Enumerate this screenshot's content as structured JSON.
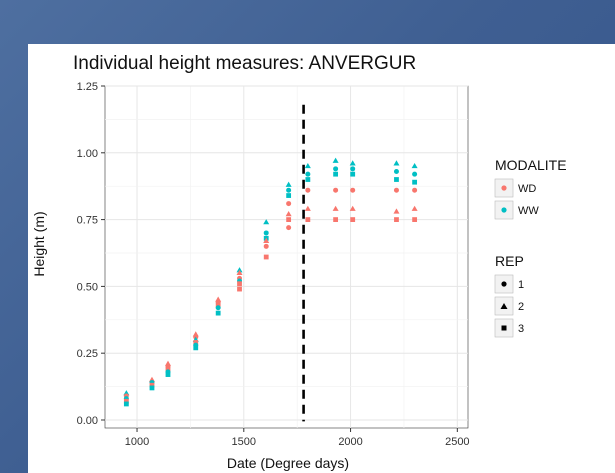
{
  "chart_data": {
    "type": "scatter",
    "title": "Individual height measures: ANVERGUR",
    "xlabel": "Date (Degree days)",
    "ylabel": "Height (m)",
    "xlim": [
      850,
      2550
    ],
    "ylim": [
      -0.03,
      1.25
    ],
    "x_ticks": [
      1000,
      1500,
      2000,
      2500
    ],
    "y_ticks": [
      0.0,
      0.25,
      0.5,
      0.75,
      1.0,
      1.25
    ],
    "x_tick_labels": [
      "1000",
      "1500",
      "2000",
      "2500"
    ],
    "y_tick_labels": [
      "0.00",
      "0.25",
      "0.50",
      "0.75",
      "1.00",
      "1.25"
    ],
    "grid": true,
    "vline": {
      "x": 1780,
      "style": "dashed",
      "color": "#000000"
    },
    "colors": {
      "WD": "#f8766d",
      "WW": "#00bfc4"
    },
    "legend_position": "right",
    "legends": [
      {
        "title": "MODALITE",
        "kind": "color",
        "items": [
          {
            "label": "WD",
            "key": "WD"
          },
          {
            "label": "WW",
            "key": "WW"
          }
        ]
      },
      {
        "title": "REP",
        "kind": "shape",
        "items": [
          {
            "label": "1",
            "shape": "circle"
          },
          {
            "label": "2",
            "shape": "triangle"
          },
          {
            "label": "3",
            "shape": "square"
          }
        ]
      }
    ],
    "points": [
      {
        "x": 950,
        "y": 0.1,
        "group": "WW",
        "rep": "2"
      },
      {
        "x": 950,
        "y": 0.09,
        "group": "WD",
        "rep": "1"
      },
      {
        "x": 950,
        "y": 0.08,
        "group": "WW",
        "rep": "1"
      },
      {
        "x": 950,
        "y": 0.07,
        "group": "WD",
        "rep": "3"
      },
      {
        "x": 950,
        "y": 0.06,
        "group": "WW",
        "rep": "3"
      },
      {
        "x": 1070,
        "y": 0.15,
        "group": "WD",
        "rep": "2"
      },
      {
        "x": 1070,
        "y": 0.14,
        "group": "WW",
        "rep": "1"
      },
      {
        "x": 1070,
        "y": 0.13,
        "group": "WD",
        "rep": "3"
      },
      {
        "x": 1070,
        "y": 0.12,
        "group": "WW",
        "rep": "3"
      },
      {
        "x": 1145,
        "y": 0.21,
        "group": "WD",
        "rep": "2"
      },
      {
        "x": 1145,
        "y": 0.2,
        "group": "WD",
        "rep": "1"
      },
      {
        "x": 1145,
        "y": 0.19,
        "group": "WD",
        "rep": "3"
      },
      {
        "x": 1145,
        "y": 0.18,
        "group": "WW",
        "rep": "1"
      },
      {
        "x": 1145,
        "y": 0.17,
        "group": "WW",
        "rep": "3"
      },
      {
        "x": 1275,
        "y": 0.32,
        "group": "WD",
        "rep": "2"
      },
      {
        "x": 1275,
        "y": 0.31,
        "group": "WD",
        "rep": "1"
      },
      {
        "x": 1275,
        "y": 0.3,
        "group": "WW",
        "rep": "2"
      },
      {
        "x": 1275,
        "y": 0.29,
        "group": "WD",
        "rep": "3"
      },
      {
        "x": 1275,
        "y": 0.28,
        "group": "WW",
        "rep": "1"
      },
      {
        "x": 1275,
        "y": 0.27,
        "group": "WW",
        "rep": "3"
      },
      {
        "x": 1380,
        "y": 0.45,
        "group": "WD",
        "rep": "2"
      },
      {
        "x": 1380,
        "y": 0.44,
        "group": "WD",
        "rep": "1"
      },
      {
        "x": 1380,
        "y": 0.43,
        "group": "WD",
        "rep": "3"
      },
      {
        "x": 1380,
        "y": 0.42,
        "group": "WW",
        "rep": "1"
      },
      {
        "x": 1380,
        "y": 0.4,
        "group": "WW",
        "rep": "3"
      },
      {
        "x": 1480,
        "y": 0.56,
        "group": "WW",
        "rep": "2"
      },
      {
        "x": 1480,
        "y": 0.55,
        "group": "WD",
        "rep": "2"
      },
      {
        "x": 1480,
        "y": 0.53,
        "group": "WD",
        "rep": "1"
      },
      {
        "x": 1480,
        "y": 0.52,
        "group": "WW",
        "rep": "1"
      },
      {
        "x": 1480,
        "y": 0.51,
        "group": "WD",
        "rep": "3"
      },
      {
        "x": 1480,
        "y": 0.49,
        "group": "WD",
        "rep": "3"
      },
      {
        "x": 1605,
        "y": 0.74,
        "group": "WW",
        "rep": "2"
      },
      {
        "x": 1605,
        "y": 0.7,
        "group": "WW",
        "rep": "1"
      },
      {
        "x": 1605,
        "y": 0.68,
        "group": "WW",
        "rep": "3"
      },
      {
        "x": 1605,
        "y": 0.67,
        "group": "WD",
        "rep": "2"
      },
      {
        "x": 1605,
        "y": 0.65,
        "group": "WD",
        "rep": "1"
      },
      {
        "x": 1605,
        "y": 0.61,
        "group": "WD",
        "rep": "3"
      },
      {
        "x": 1710,
        "y": 0.88,
        "group": "WW",
        "rep": "2"
      },
      {
        "x": 1710,
        "y": 0.86,
        "group": "WW",
        "rep": "1"
      },
      {
        "x": 1710,
        "y": 0.84,
        "group": "WW",
        "rep": "3"
      },
      {
        "x": 1710,
        "y": 0.81,
        "group": "WD",
        "rep": "1"
      },
      {
        "x": 1710,
        "y": 0.77,
        "group": "WD",
        "rep": "2"
      },
      {
        "x": 1710,
        "y": 0.75,
        "group": "WD",
        "rep": "3"
      },
      {
        "x": 1710,
        "y": 0.72,
        "group": "WD",
        "rep": "1"
      },
      {
        "x": 1800,
        "y": 0.95,
        "group": "WW",
        "rep": "2"
      },
      {
        "x": 1800,
        "y": 0.92,
        "group": "WW",
        "rep": "1"
      },
      {
        "x": 1800,
        "y": 0.9,
        "group": "WW",
        "rep": "3"
      },
      {
        "x": 1800,
        "y": 0.86,
        "group": "WD",
        "rep": "1"
      },
      {
        "x": 1800,
        "y": 0.79,
        "group": "WD",
        "rep": "2"
      },
      {
        "x": 1800,
        "y": 0.75,
        "group": "WD",
        "rep": "3"
      },
      {
        "x": 1930,
        "y": 0.97,
        "group": "WW",
        "rep": "2"
      },
      {
        "x": 1930,
        "y": 0.94,
        "group": "WW",
        "rep": "1"
      },
      {
        "x": 1930,
        "y": 0.92,
        "group": "WW",
        "rep": "3"
      },
      {
        "x": 1930,
        "y": 0.86,
        "group": "WD",
        "rep": "1"
      },
      {
        "x": 1930,
        "y": 0.79,
        "group": "WD",
        "rep": "2"
      },
      {
        "x": 1930,
        "y": 0.75,
        "group": "WD",
        "rep": "3"
      },
      {
        "x": 2010,
        "y": 0.96,
        "group": "WW",
        "rep": "2"
      },
      {
        "x": 2010,
        "y": 0.94,
        "group": "WW",
        "rep": "1"
      },
      {
        "x": 2010,
        "y": 0.92,
        "group": "WW",
        "rep": "3"
      },
      {
        "x": 2010,
        "y": 0.86,
        "group": "WD",
        "rep": "1"
      },
      {
        "x": 2010,
        "y": 0.79,
        "group": "WD",
        "rep": "2"
      },
      {
        "x": 2010,
        "y": 0.75,
        "group": "WD",
        "rep": "3"
      },
      {
        "x": 2215,
        "y": 0.96,
        "group": "WW",
        "rep": "2"
      },
      {
        "x": 2215,
        "y": 0.93,
        "group": "WW",
        "rep": "1"
      },
      {
        "x": 2215,
        "y": 0.9,
        "group": "WW",
        "rep": "3"
      },
      {
        "x": 2215,
        "y": 0.86,
        "group": "WD",
        "rep": "1"
      },
      {
        "x": 2215,
        "y": 0.78,
        "group": "WD",
        "rep": "2"
      },
      {
        "x": 2215,
        "y": 0.75,
        "group": "WD",
        "rep": "3"
      },
      {
        "x": 2300,
        "y": 0.95,
        "group": "WW",
        "rep": "2"
      },
      {
        "x": 2300,
        "y": 0.92,
        "group": "WW",
        "rep": "1"
      },
      {
        "x": 2300,
        "y": 0.89,
        "group": "WW",
        "rep": "3"
      },
      {
        "x": 2300,
        "y": 0.86,
        "group": "WD",
        "rep": "1"
      },
      {
        "x": 2300,
        "y": 0.79,
        "group": "WD",
        "rep": "2"
      },
      {
        "x": 2300,
        "y": 0.75,
        "group": "WD",
        "rep": "3"
      }
    ]
  }
}
